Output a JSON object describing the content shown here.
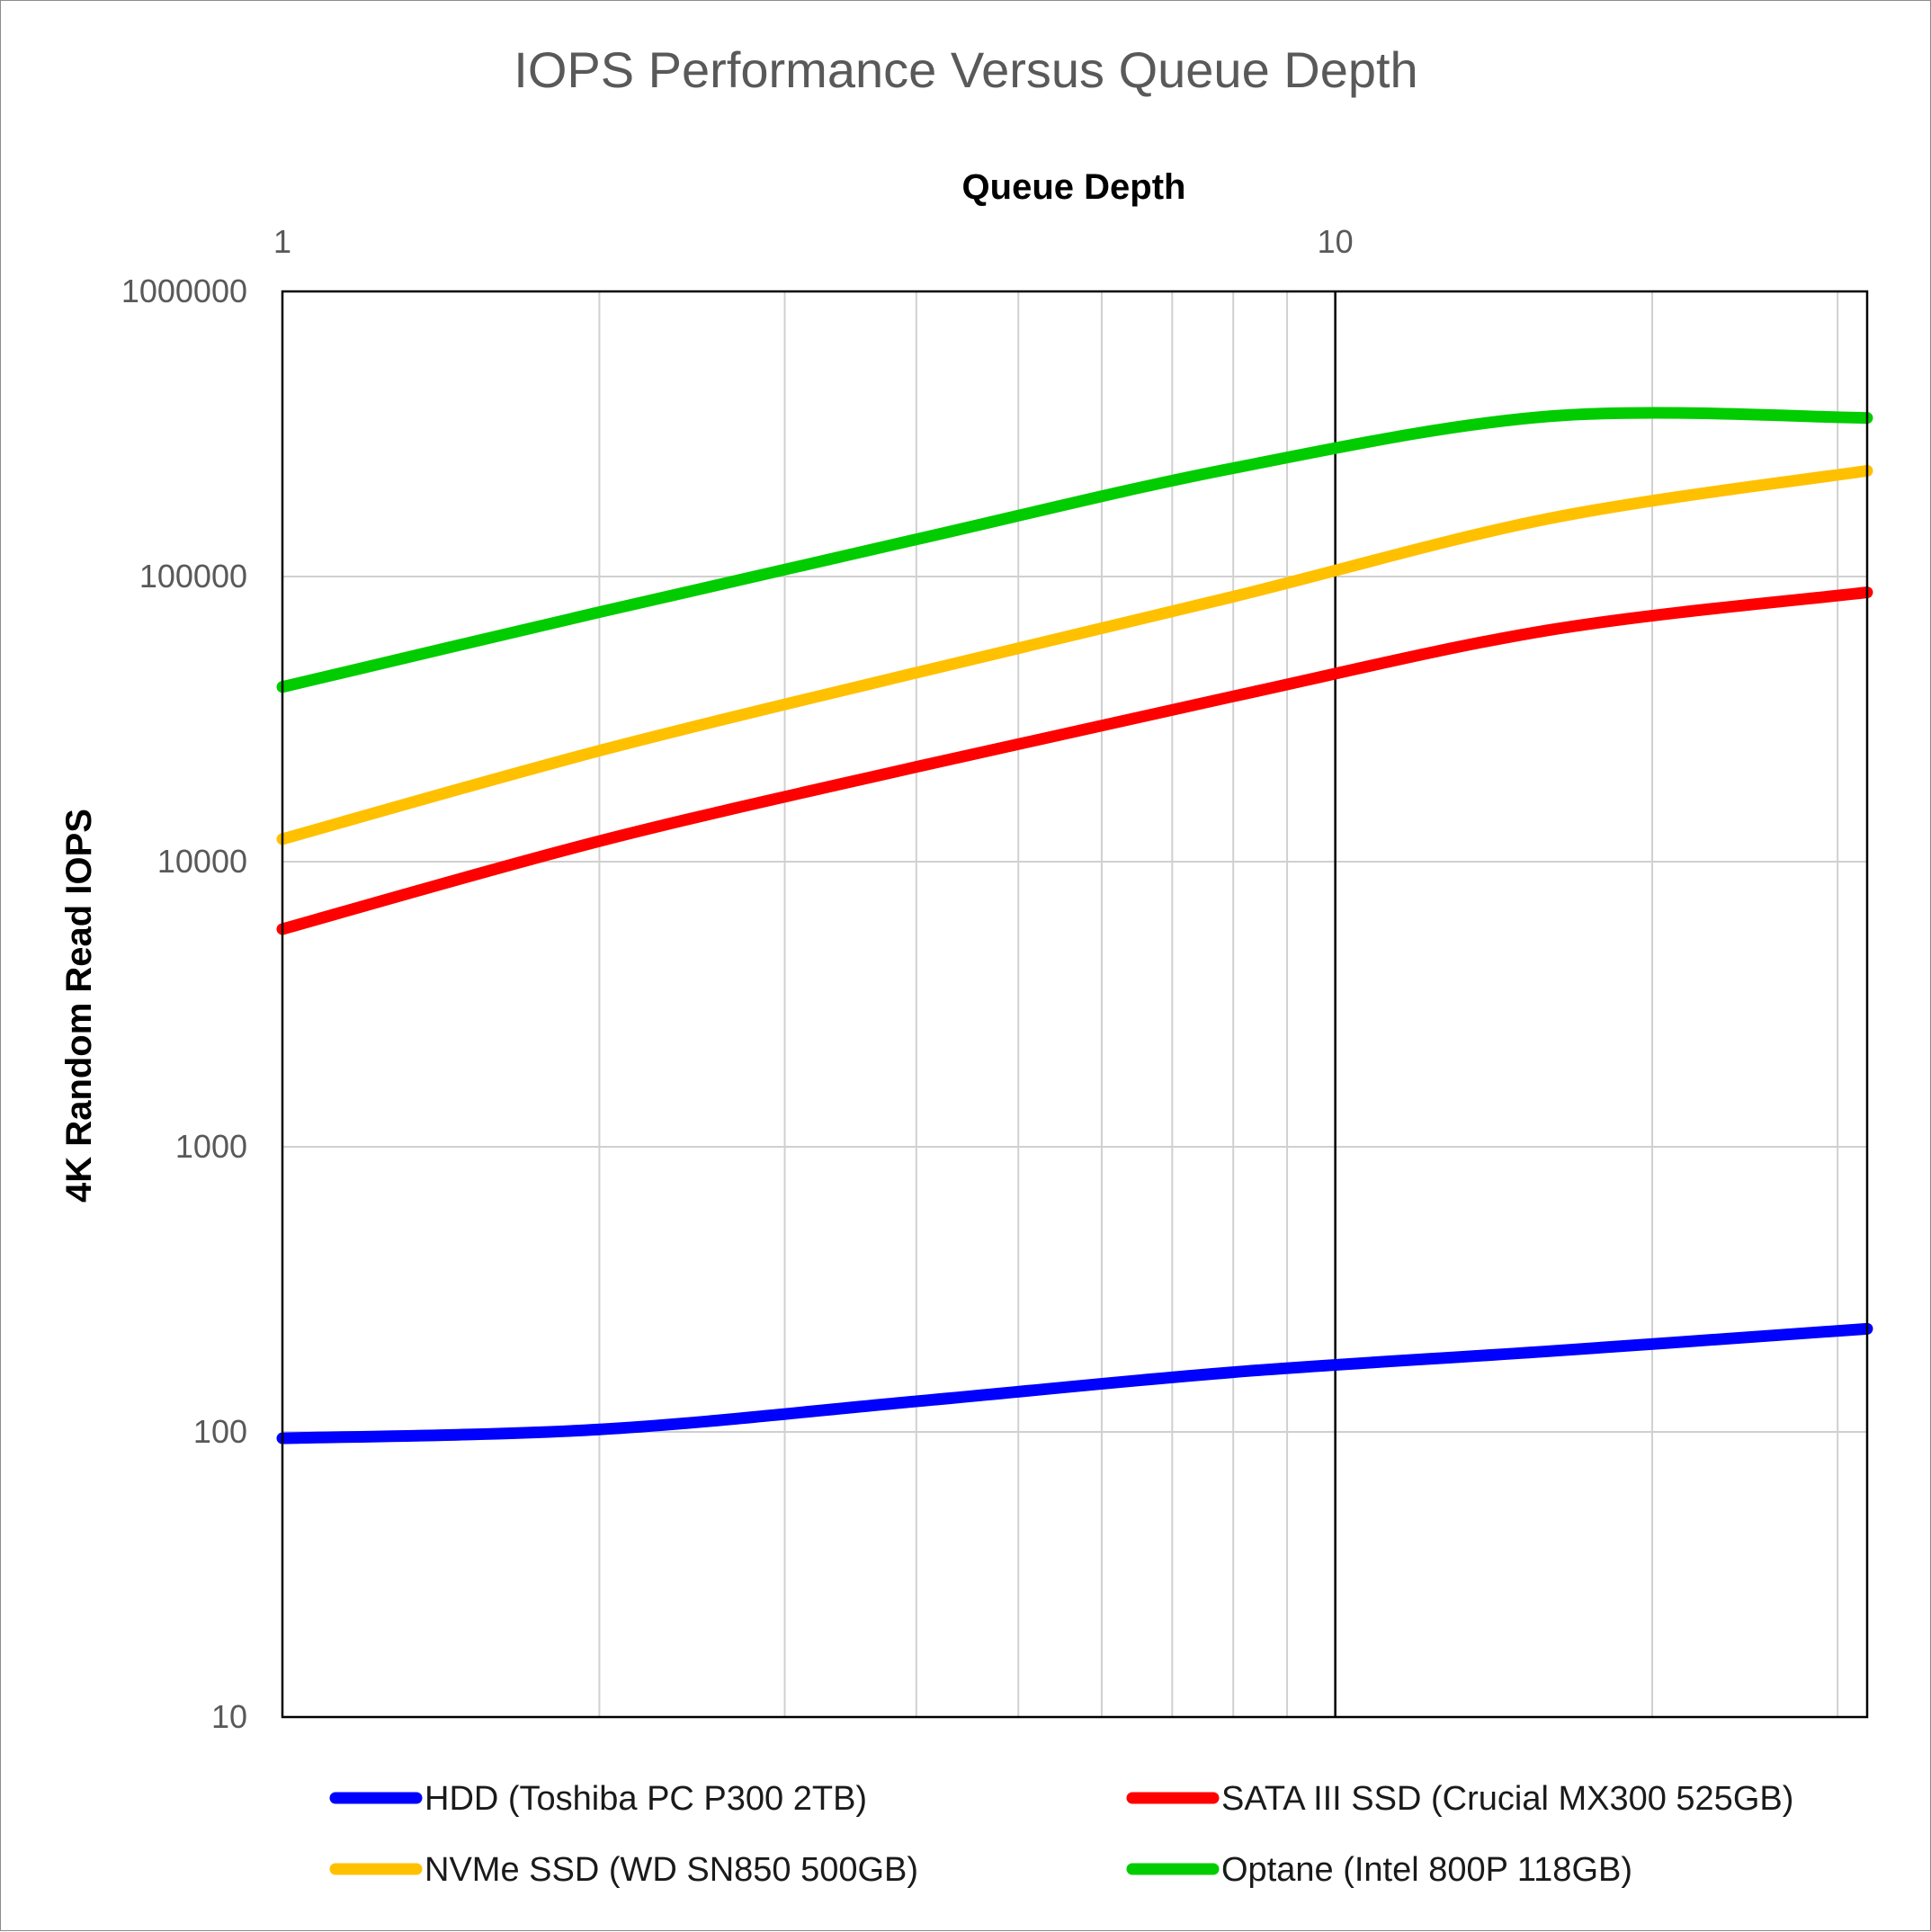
{
  "chart_data": {
    "type": "line",
    "title": "IOPS Performance Versus Queue Depth",
    "xlabel": "Queue Depth",
    "ylabel": "4K Random Read IOPS",
    "x_scale": "log",
    "y_scale": "log",
    "xlim": [
      1,
      32
    ],
    "ylim": [
      10,
      1000000
    ],
    "x_tick_labels": [
      "1",
      "10"
    ],
    "y_tick_labels": [
      "1000000",
      "100000",
      "10000",
      "1000",
      "100",
      "10"
    ],
    "x_tick_values": [
      1,
      10
    ],
    "y_tick_values": [
      1000000,
      100000,
      10000,
      1000,
      100,
      10
    ],
    "grid": true,
    "legend_position": "bottom",
    "x": [
      1,
      2,
      4,
      8,
      16,
      32
    ],
    "series": [
      {
        "name": "HDD (Toshiba PC P300 2TB)",
        "color": "#0000ff",
        "values": [
          95,
          102,
          128,
          162,
          192,
          230
        ]
      },
      {
        "name": "SATA III SSD (Crucial MX300 525GB)",
        "color": "#ff0000",
        "values": [
          5800,
          11800,
          21500,
          38000,
          65000,
          88000
        ]
      },
      {
        "name": "NVMe SSD (WD SN850 500GB)",
        "color": "#ffc000",
        "values": [
          12000,
          24500,
          46000,
          85000,
          160000,
          235000
        ]
      },
      {
        "name": "Optane (Intel 800P 118GB)",
        "color": "#00cc00",
        "values": [
          41000,
          75000,
          135000,
          240000,
          365000,
          360000
        ]
      }
    ]
  }
}
